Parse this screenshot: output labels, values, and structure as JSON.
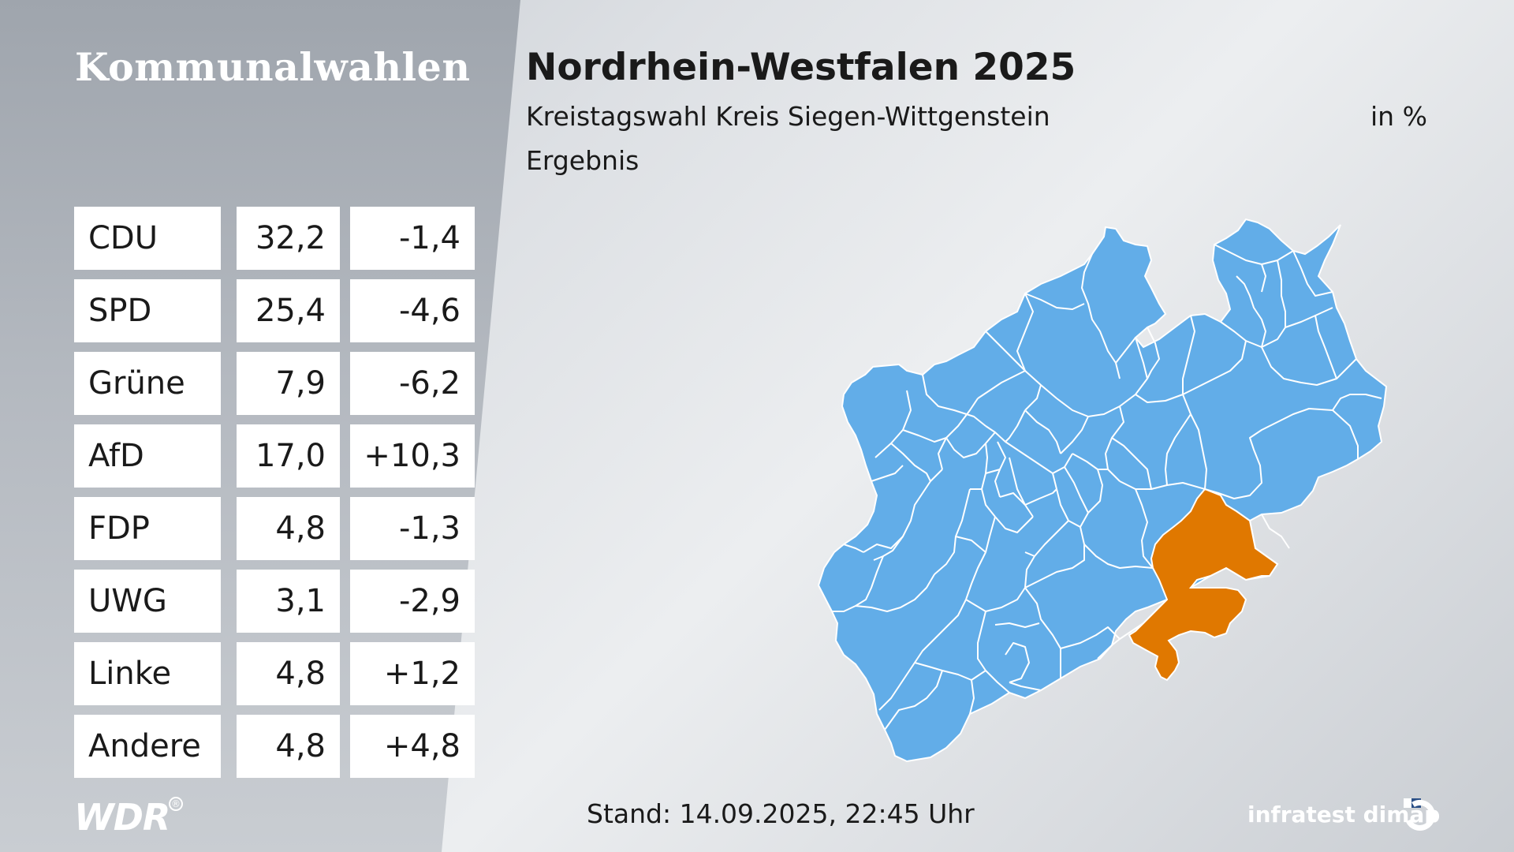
{
  "header": {
    "section": "Kommunalwahlen",
    "title": "Nordrhein-Westfalen 2025",
    "subtitle": "Kreistagswahl Kreis Siegen-Wittgenstein",
    "unit": "in %",
    "status": "Ergebnis"
  },
  "results": [
    {
      "party": "CDU",
      "value": "32,2",
      "diff": "-1,4"
    },
    {
      "party": "SPD",
      "value": "25,4",
      "diff": "-4,6"
    },
    {
      "party": "Grüne",
      "value": "7,9",
      "diff": "-6,2"
    },
    {
      "party": "AfD",
      "value": "17,0",
      "diff": "+10,3"
    },
    {
      "party": "FDP",
      "value": "4,8",
      "diff": "-1,3"
    },
    {
      "party": "UWG",
      "value": "3,1",
      "diff": "-2,9"
    },
    {
      "party": "Linke",
      "value": "4,8",
      "diff": "+1,2"
    },
    {
      "party": "Andere",
      "value": "4,8",
      "diff": "+4,8"
    }
  ],
  "map": {
    "region_color": "#62ade8",
    "highlight_color": "#e07800",
    "highlighted_district": "Siegen-Wittgenstein",
    "boundary_color": "#ffffff"
  },
  "footer": {
    "broadcaster_logo": "WDR",
    "timestamp": "Stand: 14.09.2025, 22:45 Uhr",
    "pollster": "infratest dimap"
  },
  "colors": {
    "panel_text": "#ffffff",
    "body_text": "#1a1a1a",
    "table_bg": "#ffffff"
  }
}
